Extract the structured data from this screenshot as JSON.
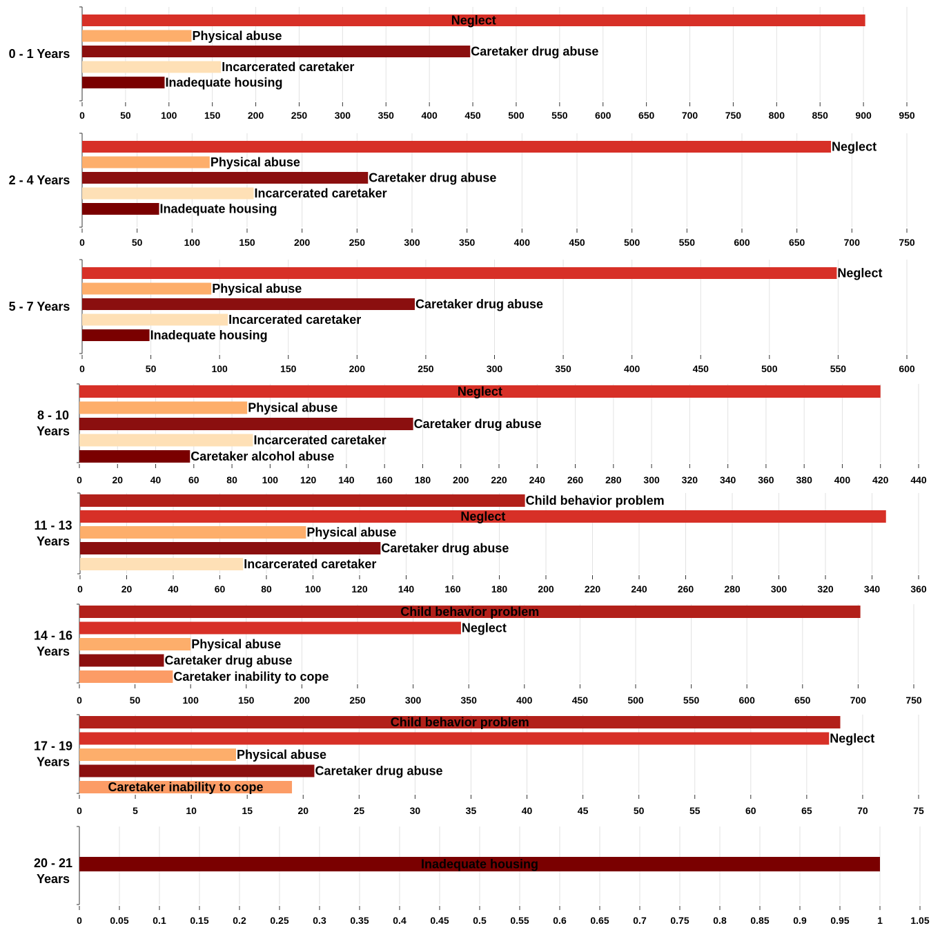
{
  "chart_data": [
    {
      "type": "bar",
      "group": [
        "0 - 1 Years"
      ],
      "categories": [
        "Neglect",
        "Physical abuse",
        "Caretaker drug abuse",
        "Incarcerated caretaker",
        "Inadequate housing"
      ],
      "values": [
        902,
        126,
        447,
        160,
        95
      ],
      "colors": [
        "#d73027",
        "#fdae6b",
        "#8b0f0f",
        "#fee0b6",
        "#7a0000"
      ],
      "xlim": [
        0,
        950
      ],
      "xticks": [
        0,
        50,
        100,
        150,
        200,
        250,
        300,
        350,
        400,
        450,
        500,
        550,
        600,
        650,
        700,
        750,
        800,
        850,
        900,
        950
      ]
    },
    {
      "type": "bar",
      "group": [
        "2 - 4 Years"
      ],
      "categories": [
        "Neglect",
        "Physical abuse",
        "Caretaker drug abuse",
        "Incarcerated caretaker",
        "Inadequate housing"
      ],
      "values": [
        681,
        116,
        260,
        156,
        70
      ],
      "colors": [
        "#d73027",
        "#fdae6b",
        "#8b0f0f",
        "#fee0b6",
        "#7a0000"
      ],
      "xlim": [
        0,
        750
      ],
      "xticks": [
        0,
        50,
        100,
        150,
        200,
        250,
        300,
        350,
        400,
        450,
        500,
        550,
        600,
        650,
        700,
        750
      ]
    },
    {
      "type": "bar",
      "group": [
        "5 - 7 Years"
      ],
      "categories": [
        "Neglect",
        "Physical abuse",
        "Caretaker drug abuse",
        "Incarcerated caretaker",
        "Inadequate housing"
      ],
      "values": [
        549,
        94,
        242,
        106,
        49
      ],
      "colors": [
        "#d73027",
        "#fdae6b",
        "#8b0f0f",
        "#fee0b6",
        "#7a0000"
      ],
      "xlim": [
        0,
        600
      ],
      "xticks": [
        0,
        50,
        100,
        150,
        200,
        250,
        300,
        350,
        400,
        450,
        500,
        550,
        600
      ]
    },
    {
      "type": "bar",
      "group": [
        "8 - 10",
        "Years"
      ],
      "categories": [
        "Neglect",
        "Physical abuse",
        "Caretaker drug abuse",
        "Incarcerated caretaker",
        "Caretaker alcohol abuse"
      ],
      "values": [
        420,
        88,
        175,
        91,
        58
      ],
      "colors": [
        "#d73027",
        "#fdae6b",
        "#8b0f0f",
        "#fee0b6",
        "#7a0000"
      ],
      "xlim": [
        0,
        440
      ],
      "xticks": [
        0,
        20,
        40,
        60,
        80,
        100,
        120,
        140,
        160,
        180,
        200,
        220,
        240,
        260,
        280,
        300,
        320,
        340,
        360,
        380,
        400,
        420,
        440
      ]
    },
    {
      "type": "bar",
      "group": [
        "11 - 13",
        "Years"
      ],
      "categories": [
        "Child behavior problem",
        "Neglect",
        "Physical abuse",
        "Caretaker drug abuse",
        "Incarcerated caretaker"
      ],
      "values": [
        191,
        346,
        97,
        129,
        70
      ],
      "colors": [
        "#b2201a",
        "#d73027",
        "#fdae6b",
        "#8b0f0f",
        "#fee0b6"
      ],
      "xlim": [
        0,
        360
      ],
      "xticks": [
        0,
        20,
        40,
        60,
        80,
        100,
        120,
        140,
        160,
        180,
        200,
        220,
        240,
        260,
        280,
        300,
        320,
        340,
        360
      ]
    },
    {
      "type": "bar",
      "group": [
        "14 - 16",
        "Years"
      ],
      "categories": [
        "Child behavior problem",
        "Neglect",
        "Physical abuse",
        "Caretaker drug abuse",
        "Caretaker inability to cope"
      ],
      "values": [
        702,
        343,
        100,
        76,
        84
      ],
      "colors": [
        "#b2201a",
        "#d73027",
        "#fdae6b",
        "#8b0f0f",
        "#fc9c66"
      ],
      "xlim": [
        0,
        750
      ],
      "xticks": [
        0,
        50,
        100,
        150,
        200,
        250,
        300,
        350,
        400,
        450,
        500,
        550,
        600,
        650,
        700,
        750
      ]
    },
    {
      "type": "bar",
      "group": [
        "17 - 19",
        "Years"
      ],
      "categories": [
        "Child behavior problem",
        "Neglect",
        "Physical abuse",
        "Caretaker drug abuse",
        "Caretaker inability to cope"
      ],
      "values": [
        68,
        67,
        14,
        21,
        19
      ],
      "colors": [
        "#b2201a",
        "#d73027",
        "#fdae6b",
        "#8b0f0f",
        "#fc9c66"
      ],
      "xlim": [
        0,
        75
      ],
      "xticks": [
        0,
        5,
        10,
        15,
        20,
        25,
        30,
        35,
        40,
        45,
        50,
        55,
        60,
        65,
        70,
        75
      ]
    },
    {
      "type": "bar",
      "group": [
        "20 - 21",
        "Years"
      ],
      "categories": [
        "Inadequate housing"
      ],
      "values": [
        1
      ],
      "colors": [
        "#7a0000"
      ],
      "xlim": [
        0,
        1.05
      ],
      "xticks": [
        "0",
        "0.05",
        "0.1",
        "0.15",
        "0.2",
        "0.25",
        "0.3",
        "0.35",
        "0.4",
        "0.45",
        "0.5",
        "0.55",
        "0.6",
        "0.65",
        "0.7",
        "0.75",
        "0.8",
        "0.85",
        "0.9",
        "0.95",
        "1",
        "1.05"
      ]
    }
  ]
}
